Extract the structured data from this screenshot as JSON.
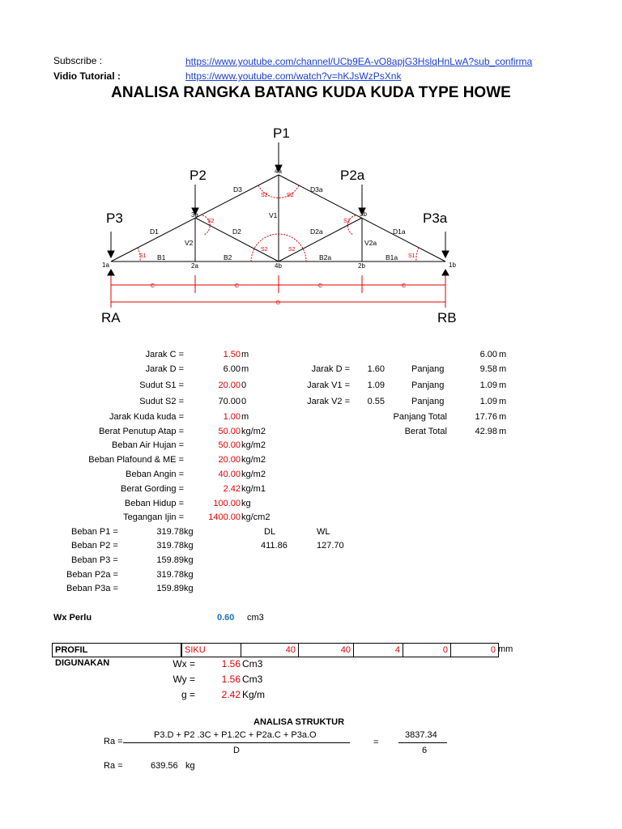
{
  "header": {
    "subscribe_label": "Subscribe :",
    "subscribe_url": "https://www.youtube.com/channel/UCb9EA-vO8apjG3HslqHnLwA?sub_confirma",
    "video_label": "Vidio Tutorial :",
    "video_url": "https://www.youtube.com/watch?v=hKJsWzPsXnk"
  },
  "title": "ANALISA RANGKA BATANG KUDA KUDA TYPE HOWE",
  "diagram": {
    "loads": {
      "p1": "P1",
      "p2": "P2",
      "p2a": "P2a",
      "p3": "P3",
      "p3a": "P3a"
    },
    "supports": {
      "ra": "RA",
      "rb": "RB"
    },
    "nodes": {
      "n4a": "4a",
      "n3a": "3a",
      "n3b": "3b",
      "n1a": "1a",
      "n2a": "2a",
      "n4b": "4b",
      "n2b": "2b",
      "n1b": "1b"
    },
    "members": {
      "d1": "D1",
      "d2": "D2",
      "d3": "D3",
      "d1a": "D1a",
      "d2a": "D2a",
      "d3a": "D3a",
      "v1": "V1",
      "v2": "V2",
      "v2a": "V2a",
      "b1": "B1",
      "b2": "B2",
      "b2a": "B2a",
      "b1a": "B1a"
    },
    "angles": {
      "s1": "S1",
      "s2": "S2"
    },
    "dims": {
      "c": "C",
      "d": "D"
    }
  },
  "params": [
    {
      "label": "Jarak C =",
      "value": "1.50",
      "unit": "m"
    },
    {
      "label": "Jarak D =",
      "value": "6.00",
      "unit": "m"
    },
    {
      "label": "Sudut S1 =",
      "value": "20.00",
      "unit": "0"
    },
    {
      "label": "Sudut S2 =",
      "value": "70.00",
      "unit": "0"
    },
    {
      "label": "Jarak Kuda kuda =",
      "value": "1.00",
      "unit": "m"
    },
    {
      "label": "Berat Penutup Atap =",
      "value": "50.00",
      "unit": "kg/m2"
    },
    {
      "label": "Beban Air Hujan =",
      "value": "50.00",
      "unit": "kg/m2"
    },
    {
      "label": "Beban Plafound & ME =",
      "value": "20.00",
      "unit": "kg/m2"
    },
    {
      "label": "Beban Angin =",
      "value": "40.00",
      "unit": "kg/m2"
    },
    {
      "label": "Berat Gording =",
      "value": "2.42",
      "unit": "kg/m1"
    },
    {
      "label": "Beban Hidup =",
      "value": "100.00",
      "unit": "kg"
    },
    {
      "label": "Tegangan Ijin =",
      "value": "1400.00",
      "unit": "kg/cm2"
    }
  ],
  "right": {
    "top_value": "6.00",
    "top_unit": "m",
    "rows": [
      {
        "label": "Jarak D =",
        "val1": "1.60",
        "plabel": "Panjang",
        "pval": "9.58",
        "unit": "m"
      },
      {
        "label": "Jarak V1 =",
        "val1": "1.09",
        "plabel": "Panjang",
        "pval": "1.09",
        "unit": "m"
      },
      {
        "label": "Jarak V2 =",
        "val1": "0.55",
        "plabel": "Panjang",
        "pval": "1.09",
        "unit": "m"
      }
    ],
    "panjang_total_label": "Panjang Total",
    "panjang_total": "17.76",
    "panjang_total_unit": "m",
    "berat_total_label": "Berat Total",
    "berat_total": "42.98",
    "berat_total_unit": "m"
  },
  "loads_table": [
    {
      "label": "Beban P1 =",
      "value": "319.78",
      "unit": "kg"
    },
    {
      "label": "Beban P2 =",
      "value": "319.78",
      "unit": "kg"
    },
    {
      "label": "Beban P3 =",
      "value": "159.89",
      "unit": "kg"
    },
    {
      "label": "Beban P2a =",
      "value": "319.78",
      "unit": "kg"
    },
    {
      "label": "Beban P3a =",
      "value": "159.89",
      "unit": "kg"
    }
  ],
  "dlwl": {
    "dl_label": "DL",
    "wl_label": "WL",
    "dl": "411.86",
    "wl": "127.70"
  },
  "wx_perlu": {
    "label": "Wx Perlu",
    "value": "0.60",
    "unit": "cm3"
  },
  "profil": {
    "label": "PROFIL DIGUNAKAN",
    "type": "SIKU",
    "a": "40",
    "b": "40",
    "c": "4",
    "d": "0",
    "e": "0",
    "unit": "mm"
  },
  "props": [
    {
      "label": "Wx =",
      "value": "1.56",
      "unit": "Cm3"
    },
    {
      "label": "Wy =",
      "value": "1.56",
      "unit": "Cm3"
    },
    {
      "label": "g =",
      "value": "2.42",
      "unit": "Kg/m"
    }
  ],
  "analysis": {
    "title": "ANALISA STRUKTUR",
    "ra_label": "Ra =",
    "numerator": "P3.D + P2 .3C + P1.2C + P2a.C + P3a.O",
    "denominator": "D",
    "equals": "=",
    "num_value": "3837.34",
    "den_value": "6",
    "ra_result_label": "Ra =",
    "ra_result": "639.56",
    "ra_result_unit": "kg"
  }
}
